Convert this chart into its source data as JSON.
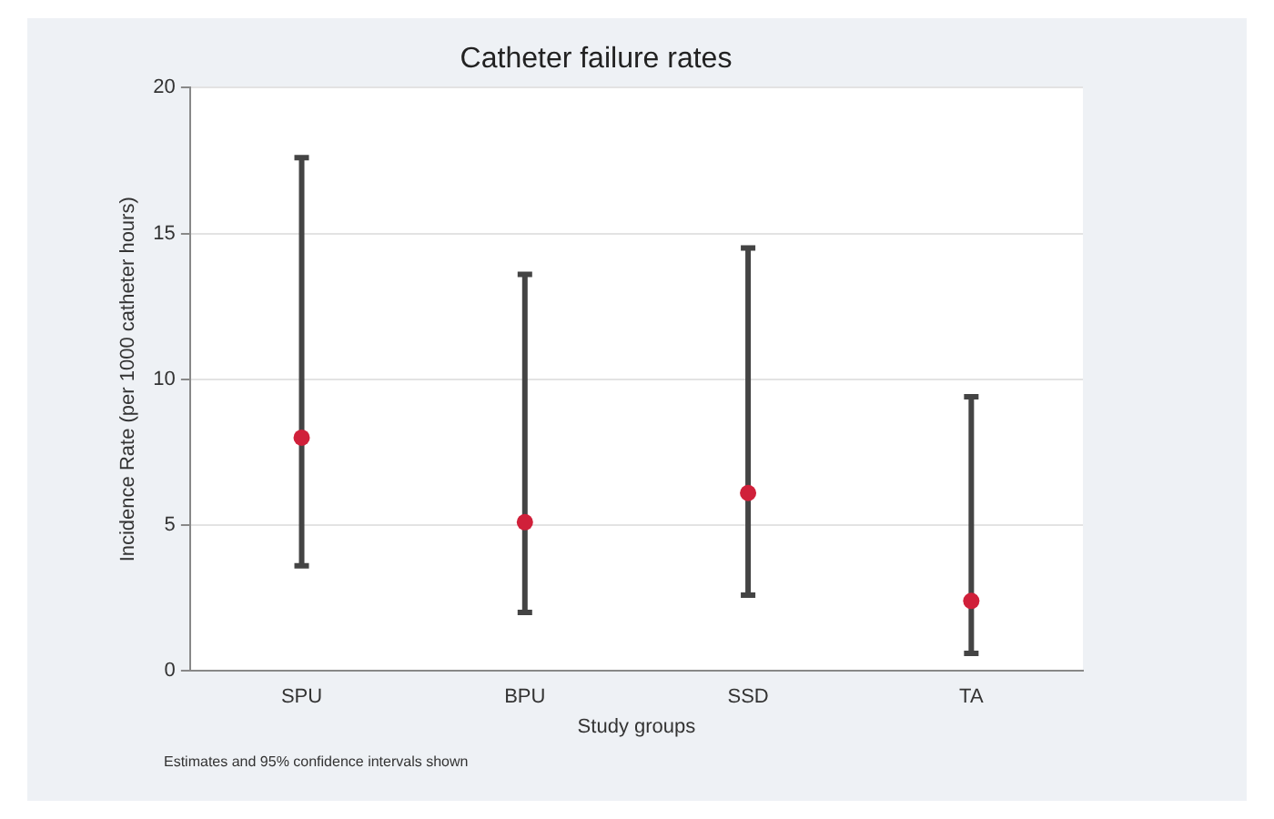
{
  "chart_data": {
    "type": "scatter",
    "title": "Catheter failure rates",
    "xlabel": "Study groups",
    "ylabel": "Incidence Rate (per 1000 catheter hours)",
    "categories": [
      "SPU",
      "BPU",
      "SSD",
      "TA"
    ],
    "series": [
      {
        "color": "#d0203a",
        "values": [
          8.0,
          5.1,
          6.1,
          2.4
        ],
        "errors": [
          [
            3.6,
            17.6
          ],
          [
            2.0,
            13.6
          ],
          [
            2.6,
            14.5
          ],
          [
            0.6,
            9.4
          ]
        ]
      }
    ],
    "ylim": [
      0,
      20
    ],
    "yticks": [
      0,
      5,
      10,
      15,
      20
    ],
    "grid": "y",
    "marker": "circle",
    "legend": false,
    "annotations": [
      "Estimates and 95% confidence intervals shown"
    ]
  }
}
